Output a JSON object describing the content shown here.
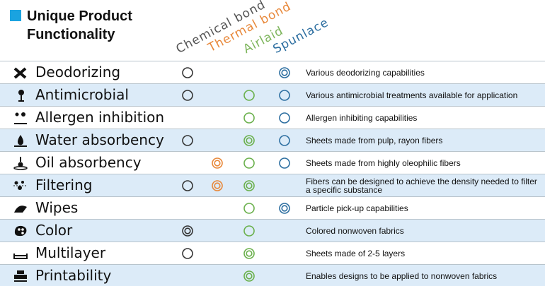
{
  "header": {
    "title": "Unique Product Functionality",
    "accent": "#1aa3e0"
  },
  "columns": [
    {
      "name": "Chemical bond",
      "color": "#333333",
      "label_color": "#555555"
    },
    {
      "name": "Thermal bond",
      "color": "#e8883a",
      "label_color": "#e8883a"
    },
    {
      "name": "Airlaid",
      "color": "#6ab04c",
      "label_color": "#7cb45a"
    },
    {
      "name": "Spunlace",
      "color": "#2c6ea0",
      "label_color": "#2c6ea0"
    }
  ],
  "rows": [
    {
      "name": "Deodorizing",
      "marks": [
        "single",
        null,
        null,
        "double"
      ],
      "description": "Various deodorizing capabilities"
    },
    {
      "name": "Antimicrobial",
      "marks": [
        "single",
        null,
        "single",
        "single"
      ],
      "description": "Various antimicrobial treatments available for application"
    },
    {
      "name": "Allergen inhibition",
      "marks": [
        null,
        null,
        "single",
        "single"
      ],
      "description": "Allergen inhibiting capabilities"
    },
    {
      "name": "Water absorbency",
      "marks": [
        "single",
        null,
        "double",
        "single"
      ],
      "description": "Sheets made from pulp, rayon fibers"
    },
    {
      "name": "Oil absorbency",
      "marks": [
        null,
        "double",
        "single",
        "single"
      ],
      "description": "Sheets made from highly oleophilic fibers"
    },
    {
      "name": "Filtering",
      "marks": [
        "single",
        "double",
        "double",
        null
      ],
      "description": "Fibers can be designed to achieve the density needed to filter a specific substance"
    },
    {
      "name": "Wipes",
      "marks": [
        null,
        null,
        "single",
        "double"
      ],
      "description": "Particle pick-up capabilities"
    },
    {
      "name": "Color",
      "marks": [
        "double",
        null,
        "single",
        null
      ],
      "description": "Colored nonwoven fabrics"
    },
    {
      "name": "Multilayer",
      "marks": [
        "single",
        null,
        "double",
        null
      ],
      "description": "Sheets made of 2-5 layers"
    },
    {
      "name": "Printability",
      "marks": [
        null,
        null,
        "double",
        null
      ],
      "description": "Enables designs to be applied to nonwoven fabrics"
    }
  ]
}
